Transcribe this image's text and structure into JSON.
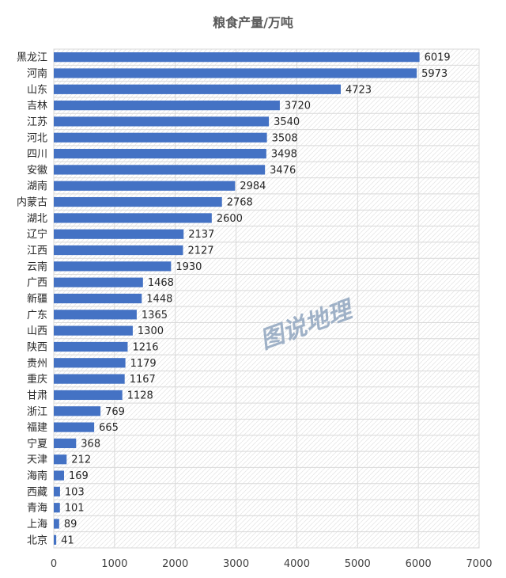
{
  "chart_data": {
    "type": "bar",
    "orientation": "horizontal",
    "title": "粮食产量/万吨",
    "categories": [
      "黑龙江",
      "河南",
      "山东",
      "吉林",
      "江苏",
      "河北",
      "四川",
      "安徽",
      "湖南",
      "内蒙古",
      "湖北",
      "辽宁",
      "江西",
      "云南",
      "广西",
      "新疆",
      "广东",
      "山西",
      "陕西",
      "贵州",
      "重庆",
      "甘肃",
      "浙江",
      "福建",
      "宁夏",
      "天津",
      "海南",
      "西藏",
      "青海",
      "上海",
      "北京"
    ],
    "values": [
      6019,
      5973,
      4723,
      3720,
      3540,
      3508,
      3498,
      3476,
      2984,
      2768,
      2600,
      2137,
      2127,
      1930,
      1468,
      1448,
      1365,
      1300,
      1216,
      1179,
      1167,
      1128,
      769,
      665,
      368,
      212,
      169,
      103,
      101,
      89,
      41
    ],
    "xlim": [
      0,
      7000
    ],
    "xticks": [
      "0",
      "1000",
      "2000",
      "3000",
      "4000",
      "5000",
      "6000",
      "7000"
    ],
    "grid": true,
    "data_labels": true,
    "bar_color": "#4472c4",
    "watermark": "图说地理"
  }
}
